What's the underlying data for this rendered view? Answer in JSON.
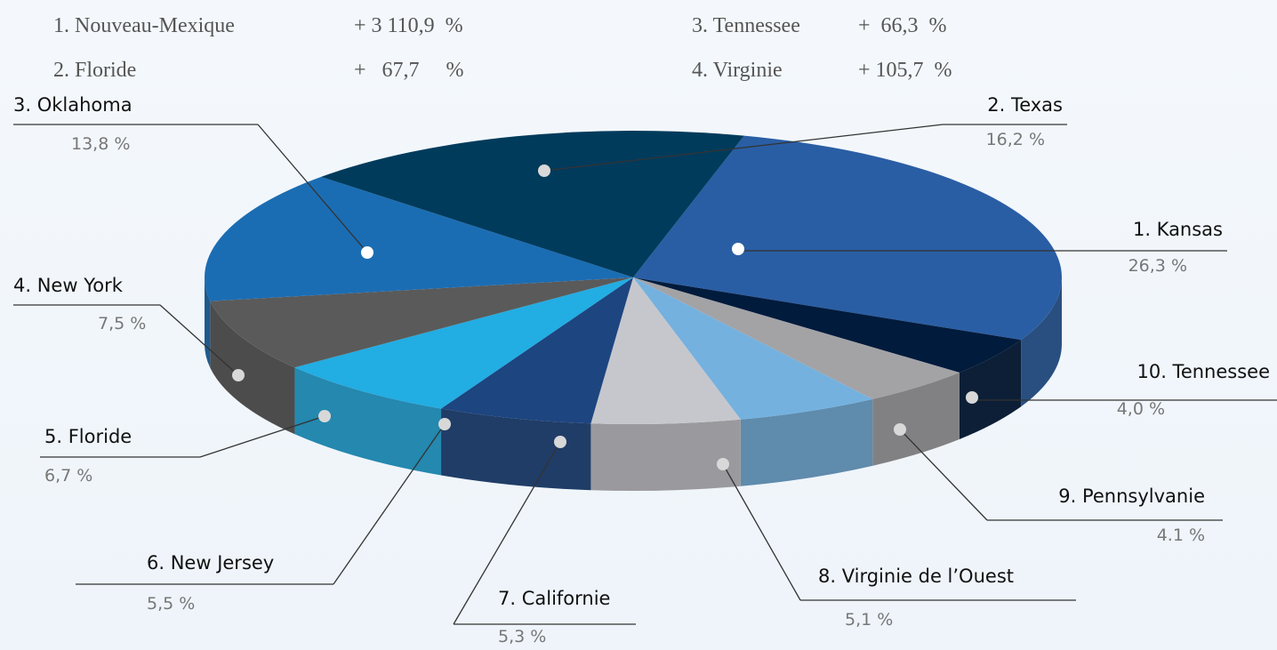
{
  "growth": [
    {
      "name": "1. Nouveau-Mexique",
      "value": "+ 3 110,9  %"
    },
    {
      "name": "2. Floride",
      "value": "+   67,7     %"
    },
    {
      "name": "3. Tennessee",
      "value": "+  66,3  %"
    },
    {
      "name": "4. Virginie",
      "value": "+ 105,7  %"
    }
  ],
  "chart_data": {
    "type": "pie3d",
    "categories": [
      "1. Kansas",
      "10. Tennessee",
      "9. Pennsylvanie",
      "8. Virginie de l’Ouest",
      "7. Californie",
      "6. New Jersey",
      "5. Floride",
      "4. New York",
      "3. Oklahoma",
      "2. Texas"
    ],
    "values": [
      26.3,
      4.0,
      4.1,
      5.1,
      5.3,
      5.5,
      6.7,
      7.5,
      13.8,
      16.2
    ],
    "value_labels": [
      "26,3 %",
      "4,0 %",
      "4.1 %",
      "5,1 %",
      "5,3 %",
      "5,5 %",
      "6,7 %",
      "7,5 %",
      "13,8 %",
      "16,2 %"
    ],
    "colors": [
      "#2a5ea4",
      "#011b3c",
      "#a3a3a6",
      "#74b1df",
      "#c6c7cc",
      "#1d4580",
      "#22ade3",
      "#5a5a5a",
      "#1b6db3",
      "#003b5c"
    ]
  }
}
